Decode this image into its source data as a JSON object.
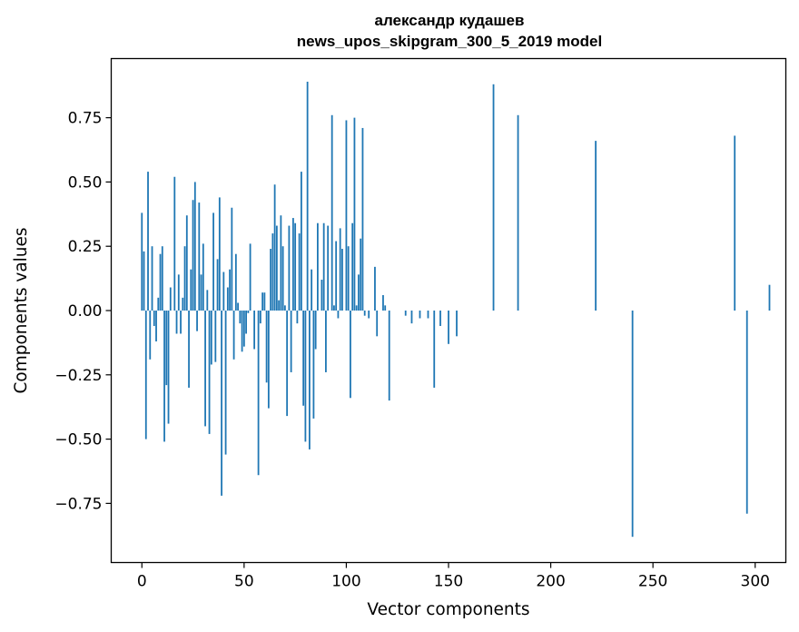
{
  "chart_data": {
    "type": "bar",
    "title_line1": "александр кудашев",
    "title_line2": "news_upos_skipgram_300_5_2019 model",
    "xlabel": "Vector components",
    "ylabel": "Components values",
    "xlim": [
      -15,
      315
    ],
    "ylim": [
      -0.98,
      0.98
    ],
    "xticks": [
      0,
      50,
      100,
      150,
      200,
      250,
      300
    ],
    "xtick_labels": [
      "0",
      "50",
      "100",
      "150",
      "200",
      "250",
      "300"
    ],
    "yticks": [
      -0.75,
      -0.5,
      -0.25,
      0.0,
      0.25,
      0.5,
      0.75
    ],
    "ytick_labels": [
      "−0.75",
      "−0.50",
      "−0.25",
      "0.00",
      "0.25",
      "0.50",
      "0.75"
    ],
    "bar_color": "#1f77b4",
    "values": [
      0.38,
      0.23,
      -0.5,
      0.54,
      -0.19,
      0.25,
      -0.06,
      -0.12,
      0.05,
      0.22,
      0.25,
      -0.51,
      -0.29,
      -0.44,
      0.09,
      0.0,
      0.52,
      -0.09,
      0.14,
      -0.09,
      0.05,
      0.25,
      0.37,
      -0.3,
      0.16,
      0.43,
      0.5,
      -0.08,
      0.42,
      0.14,
      0.26,
      -0.45,
      0.08,
      -0.48,
      -0.21,
      0.38,
      -0.2,
      0.2,
      0.44,
      -0.72,
      0.15,
      -0.56,
      0.09,
      0.16,
      0.4,
      -0.19,
      0.22,
      0.03,
      -0.05,
      -0.16,
      -0.14,
      -0.09,
      -0.01,
      0.26,
      0.0,
      -0.15,
      0.0,
      -0.64,
      -0.05,
      0.07,
      0.07,
      -0.28,
      -0.38,
      0.24,
      0.3,
      0.49,
      0.33,
      0.04,
      0.37,
      0.25,
      0.02,
      -0.41,
      0.33,
      -0.24,
      0.36,
      0.34,
      -0.05,
      0.3,
      0.54,
      -0.37,
      -0.51,
      0.89,
      -0.54,
      0.16,
      -0.42,
      -0.15,
      0.34,
      0.0,
      0.12,
      0.34,
      -0.24,
      0.33,
      0.0,
      0.76,
      0.02,
      0.27,
      -0.03,
      0.32,
      0.24,
      0.0,
      0.74,
      0.25,
      -0.34,
      0.34,
      0.75,
      0.02,
      0.14,
      0.28,
      0.71,
      -0.02,
      0.0,
      -0.03,
      0.0,
      0.0,
      0.17,
      -0.1,
      0.0,
      0.0,
      0.06,
      0.02,
      0.0,
      -0.35,
      0.0,
      0.0,
      0.0,
      0.0,
      0.0,
      0.0,
      0.0,
      -0.02,
      0.0,
      0.0,
      -0.05,
      0.0,
      0.0,
      0.0,
      -0.03,
      0.0,
      0.0,
      0.0,
      -0.03,
      0.0,
      0.0,
      -0.3,
      0.0,
      0.0,
      -0.06,
      0.0,
      0.0,
      0.0,
      -0.13,
      0.0,
      0.0,
      0.0,
      -0.1,
      0.0,
      0.0,
      0.0,
      0.0,
      0.0,
      0.0,
      0.0,
      0.0,
      0.0,
      0.0,
      0.0,
      0.0,
      0.0,
      0.0,
      0.0,
      0.0,
      0.0,
      0.88,
      0.0,
      0.0,
      0.0,
      0.0,
      0.0,
      0.0,
      0.0,
      0.0,
      0.0,
      0.0,
      0.0,
      0.76,
      0.0,
      0.0,
      0.0,
      0.0,
      0.0,
      0.0,
      0.0,
      0.0,
      0.0,
      0.0,
      0.0,
      0.0,
      0.0,
      0.0,
      0.0,
      0.0,
      0.0,
      0.0,
      0.0,
      0.0,
      0.0,
      0.0,
      0.0,
      0.0,
      0.0,
      0.0,
      0.0,
      0.0,
      0.0,
      0.0,
      0.0,
      0.0,
      0.0,
      0.0,
      0.0,
      0.0,
      0.0,
      0.66,
      0.0,
      0.0,
      0.0,
      0.0,
      0.0,
      0.0,
      0.0,
      0.0,
      0.0,
      0.0,
      0.0,
      0.0,
      0.0,
      0.0,
      0.0,
      0.0,
      0.0,
      -0.88,
      0.0,
      0.0,
      0.0,
      0.0,
      0.0,
      0.0,
      0.0,
      0.0,
      0.0,
      0.0,
      0.0,
      0.0,
      0.0,
      0.0,
      0.0,
      0.0,
      0.0,
      0.0,
      0.0,
      0.0,
      0.0,
      0.0,
      0.0,
      0.0,
      0.0,
      0.0,
      0.0,
      0.0,
      0.0,
      0.0,
      0.0,
      0.0,
      0.0,
      0.0,
      0.0,
      0.0,
      0.0,
      0.0,
      0.0,
      0.0,
      0.0,
      0.0,
      0.0,
      0.0,
      0.0,
      0.0,
      0.0,
      0.0,
      0.0,
      0.68,
      0.0,
      0.0,
      0.0,
      0.0,
      0.0,
      -0.79,
      0.0,
      0.0,
      0.0,
      0.0,
      0.0,
      0.0,
      0.0,
      0.0,
      0.0,
      0.0,
      0.1
    ]
  }
}
